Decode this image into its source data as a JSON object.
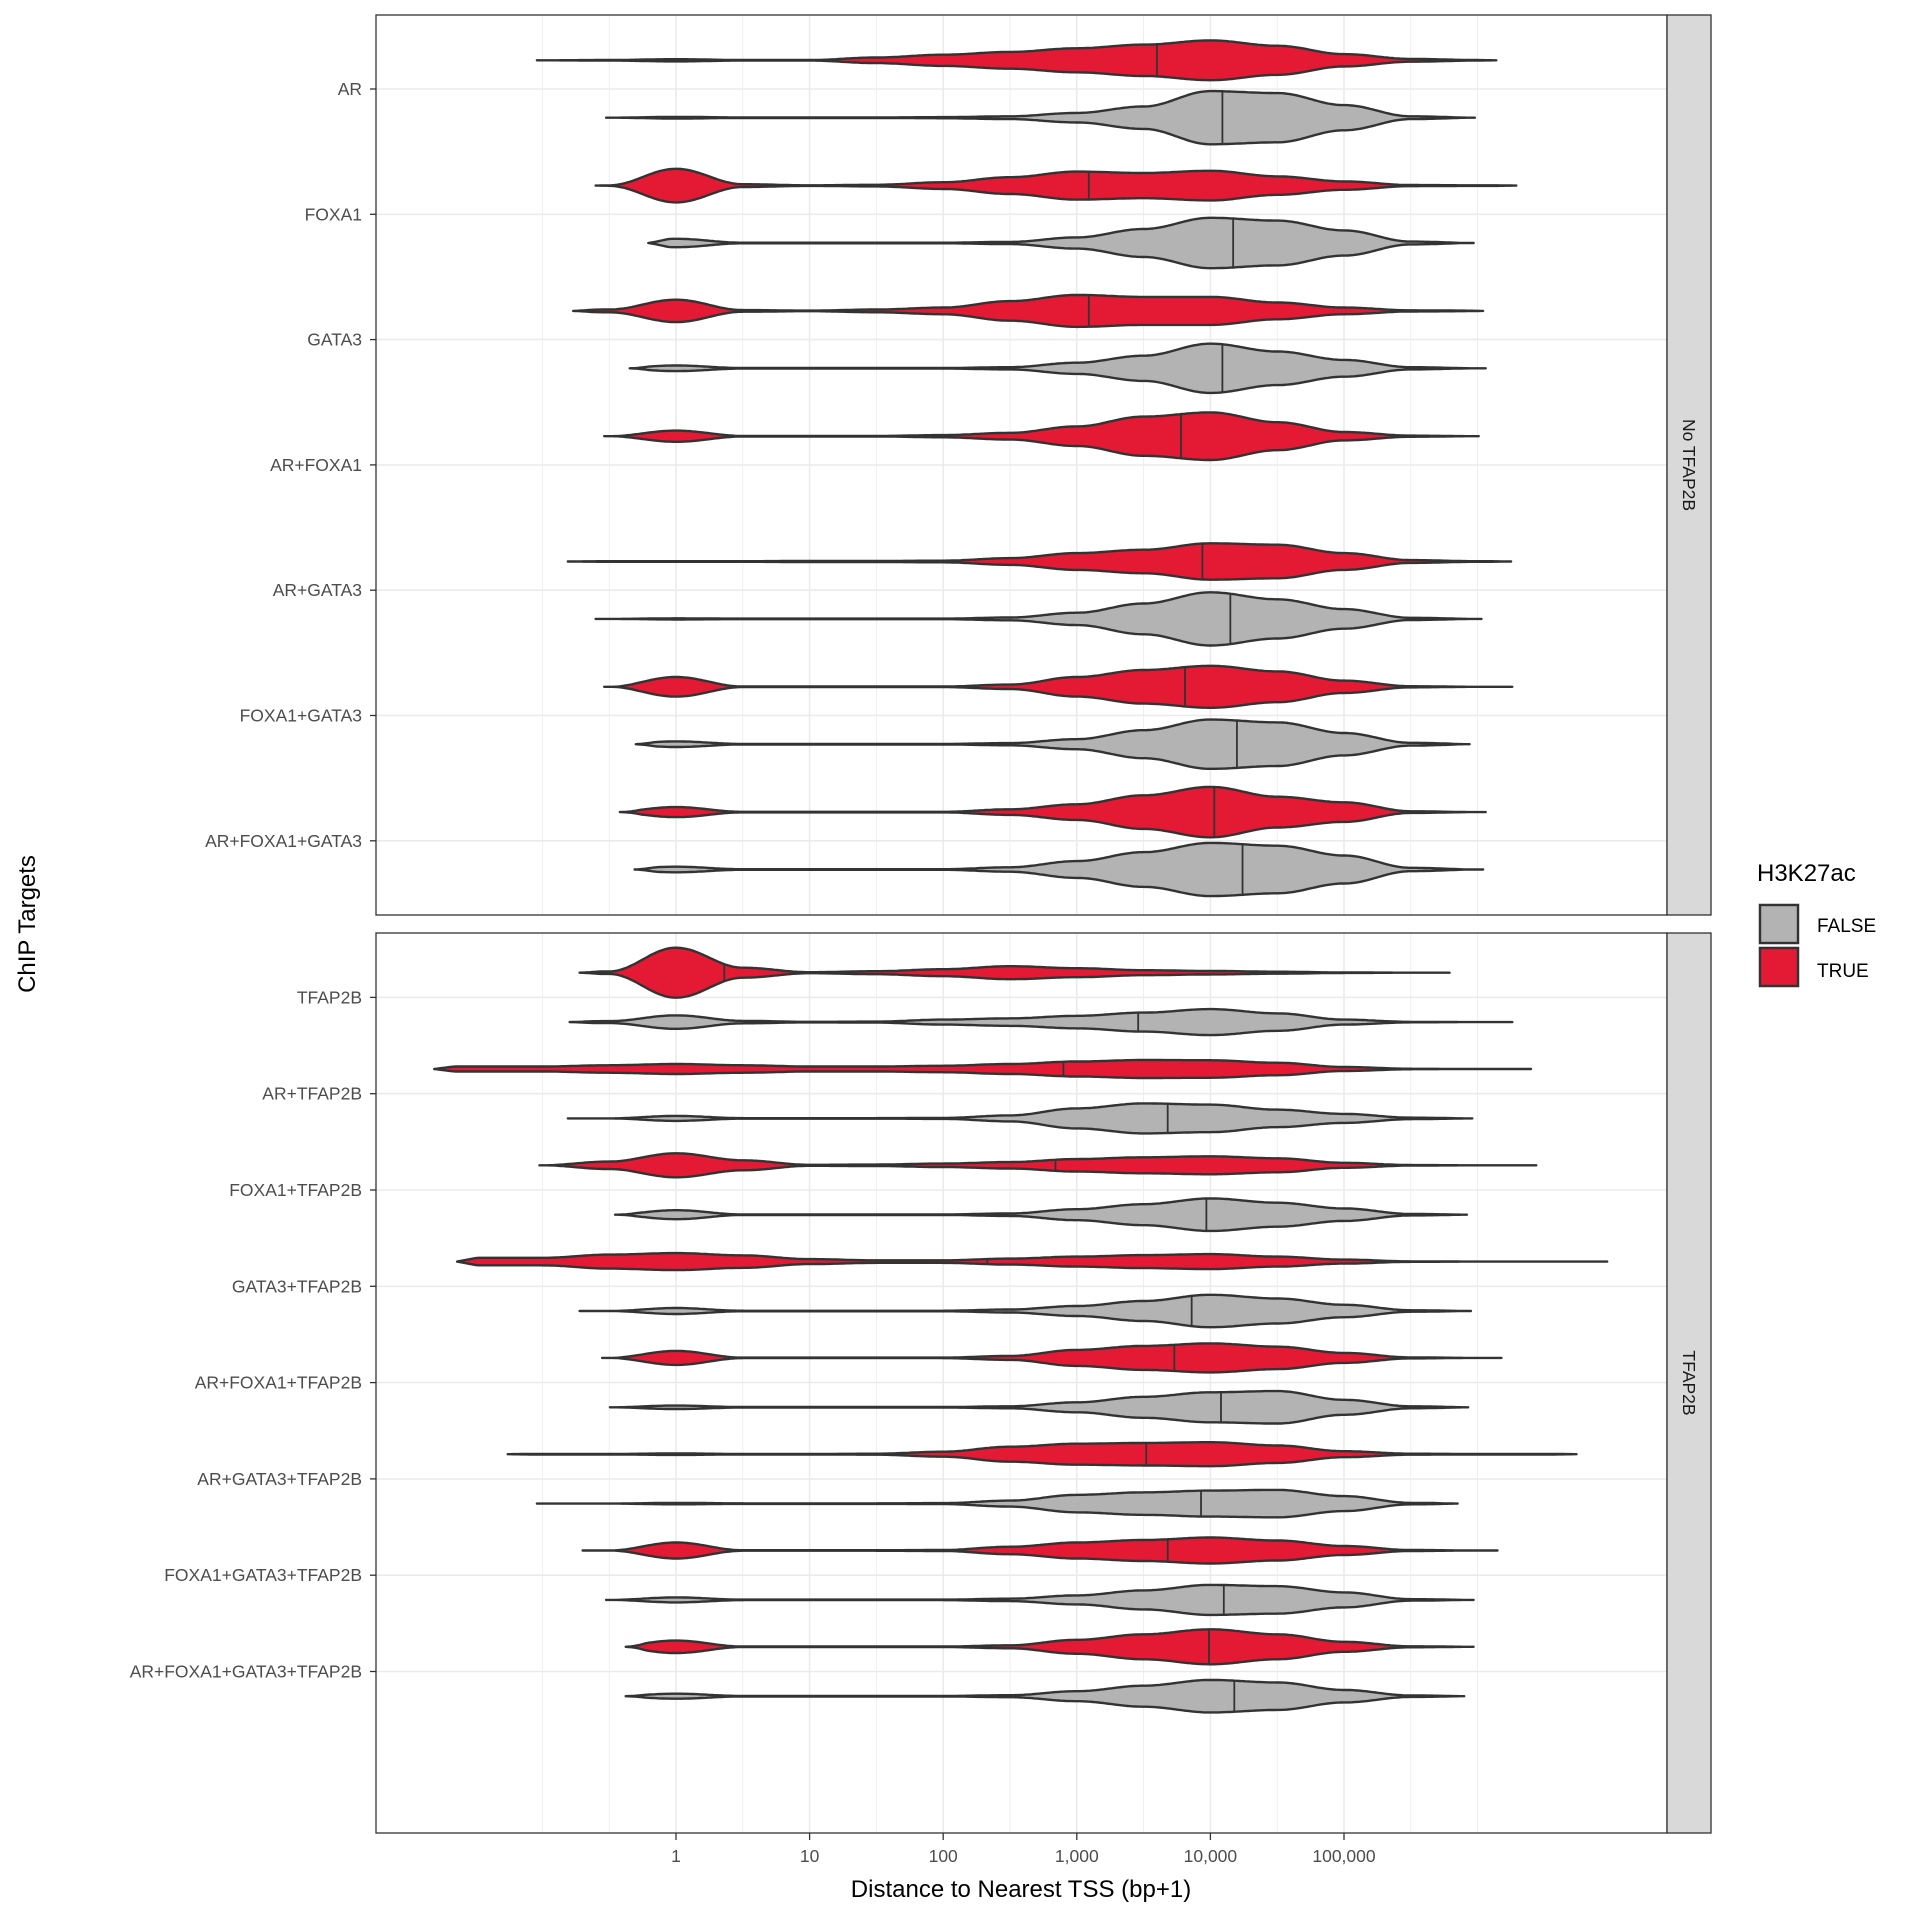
{
  "chart_data": {
    "type": "violin",
    "orientation": "horizontal",
    "xlabel": "Distance to Nearest TSS (bp+1)",
    "ylabel": "ChIP Targets",
    "x_scale": "log10",
    "x_ticks": [
      1,
      10,
      100,
      1000,
      10000,
      100000
    ],
    "x_tick_labels": [
      "1",
      "10",
      "100",
      "1,000",
      "10,000",
      "100,000"
    ],
    "xlim": [
      0.0057,
      26000000
    ],
    "grid": true,
    "legend": {
      "title": "H3K27ac",
      "placement": "right",
      "entries": [
        {
          "label": "FALSE",
          "color": "#b3b3b3"
        },
        {
          "label": "TRUE",
          "color": "#e41a35"
        }
      ]
    },
    "outline_color": "#333333",
    "density_at_bp": [
      0.1,
      0.316,
      1,
      3.16,
      10,
      31.6,
      100,
      316,
      1000,
      3162,
      10000,
      31623,
      100000,
      316228,
      1000000
    ],
    "facets": [
      {
        "label": "No TFAP2B",
        "categories": [
          {
            "name": "AR",
            "TRUE": {
              "min": 0.091,
              "max": 1380000,
              "median": 3980,
              "density": [
                0,
                0.01,
                0.04,
                0.01,
                0.01,
                0.1,
                0.2,
                0.3,
                0.43,
                0.56,
                0.71,
                0.52,
                0.22,
                0.05,
                0.01
              ]
            },
            "FALSE": {
              "min": 0.3,
              "max": 955000,
              "median": 12300,
              "density": [
                0,
                0,
                0.03,
                0.01,
                0.01,
                0.01,
                0.02,
                0.05,
                0.17,
                0.4,
                0.95,
                0.88,
                0.45,
                0.05,
                0
              ]
            }
          },
          {
            "name": "FOXA1",
            "TRUE": {
              "min": 0.25,
              "max": 1950000,
              "median": 1230,
              "density": [
                0,
                0.01,
                0.6,
                0.05,
                0.01,
                0.03,
                0.12,
                0.3,
                0.5,
                0.45,
                0.53,
                0.33,
                0.15,
                0.02,
                0.01
              ]
            },
            "FALSE": {
              "min": 0.62,
              "max": 933000,
              "median": 14800,
              "density": [
                0,
                0,
                0.15,
                0.01,
                0.01,
                0.01,
                0.01,
                0.04,
                0.2,
                0.5,
                0.9,
                0.8,
                0.45,
                0.05,
                0
              ]
            }
          },
          {
            "name": "GATA3",
            "TRUE": {
              "min": 0.17,
              "max": 1100000,
              "median": 1230,
              "density": [
                0,
                0.05,
                0.4,
                0.03,
                0.01,
                0.05,
                0.12,
                0.35,
                0.57,
                0.5,
                0.5,
                0.3,
                0.12,
                0.02,
                0.01
              ]
            },
            "FALSE": {
              "min": 0.45,
              "max": 1150000,
              "median": 12300,
              "density": [
                0,
                0,
                0.1,
                0.01,
                0.01,
                0.01,
                0.01,
                0.04,
                0.2,
                0.45,
                0.88,
                0.6,
                0.3,
                0.04,
                0
              ]
            }
          },
          {
            "name": "AR+FOXA1",
            "TRUE": {
              "min": 0.29,
              "max": 1020000,
              "median": 6030,
              "density": [
                0,
                0,
                0.2,
                0.01,
                0.01,
                0.01,
                0.04,
                0.12,
                0.35,
                0.7,
                0.85,
                0.5,
                0.15,
                0.02,
                0
              ]
            }
          },
          {
            "name": "AR+GATA3",
            "TRUE": {
              "min": 0.155,
              "max": 1780000,
              "median": 8710,
              "density": [
                0,
                0.01,
                0.01,
                0.01,
                0.02,
                0.02,
                0.03,
                0.12,
                0.3,
                0.42,
                0.65,
                0.6,
                0.3,
                0.05,
                0.01
              ]
            },
            "FALSE": {
              "min": 0.25,
              "max": 1070000,
              "median": 14100,
              "density": [
                0,
                0,
                0.02,
                0.01,
                0.01,
                0.01,
                0.01,
                0.05,
                0.22,
                0.55,
                0.95,
                0.7,
                0.35,
                0.04,
                0
              ]
            }
          },
          {
            "name": "FOXA1+GATA3",
            "TRUE": {
              "min": 0.29,
              "max": 1820000,
              "median": 6460,
              "density": [
                0,
                0,
                0.35,
                0.01,
                0.01,
                0.01,
                0.01,
                0.08,
                0.35,
                0.6,
                0.75,
                0.55,
                0.22,
                0.02,
                0
              ]
            },
            "FALSE": {
              "min": 0.5,
              "max": 871000,
              "median": 15800,
              "density": [
                0,
                0,
                0.1,
                0.01,
                0.01,
                0.01,
                0.01,
                0.04,
                0.18,
                0.5,
                0.88,
                0.78,
                0.4,
                0.05,
                0
              ]
            }
          },
          {
            "name": "AR+FOXA1+GATA3",
            "TRUE": {
              "min": 0.38,
              "max": 1150000,
              "median": 10700,
              "density": [
                0,
                0,
                0.18,
                0.01,
                0.01,
                0.01,
                0.01,
                0.1,
                0.28,
                0.6,
                0.9,
                0.55,
                0.35,
                0.03,
                0
              ]
            },
            "FALSE": {
              "min": 0.49,
              "max": 1100000,
              "median": 17400,
              "density": [
                0,
                0,
                0.1,
                0.01,
                0.01,
                0.01,
                0.01,
                0.08,
                0.3,
                0.62,
                0.95,
                0.85,
                0.5,
                0.06,
                0
              ]
            }
          }
        ]
      },
      {
        "label": "TFAP2B",
        "categories": [
          {
            "name": "TFAP2B",
            "TRUE": {
              "min": 0.19,
              "max": 617000,
              "median": 2.3,
              "density": [
                0,
                0.05,
                1.0,
                0.2,
                0.02,
                0.06,
                0.14,
                0.26,
                0.18,
                0.1,
                0.07,
                0.04,
                0.01,
                0,
                0
              ]
            },
            "FALSE": {
              "min": 0.16,
              "max": 1820000,
              "median": 2880,
              "density": [
                0,
                0.04,
                0.27,
                0.05,
                0.01,
                0.02,
                0.1,
                0.15,
                0.25,
                0.38,
                0.52,
                0.35,
                0.1,
                0.01,
                0
              ]
            }
          },
          {
            "name": "AR+TFAP2B",
            "TRUE": {
              "min": 0.0155,
              "max": 2510000,
              "median": 794,
              "density": [
                0.1,
                0.15,
                0.2,
                0.15,
                0.1,
                0.1,
                0.13,
                0.2,
                0.3,
                0.36,
                0.35,
                0.25,
                0.08,
                0.01,
                0
              ]
            },
            "FALSE": {
              "min": 0.155,
              "max": 912000,
              "median": 4790,
              "density": [
                0,
                0,
                0.1,
                0.01,
                0.01,
                0.01,
                0.02,
                0.12,
                0.4,
                0.6,
                0.55,
                0.35,
                0.18,
                0.03,
                0
              ]
            }
          },
          {
            "name": "FOXA1+TFAP2B",
            "TRUE": {
              "min": 0.095,
              "max": 2750000,
              "median": 692,
              "density": [
                0,
                0.15,
                0.48,
                0.2,
                0.02,
                0.03,
                0.07,
                0.13,
                0.25,
                0.32,
                0.36,
                0.28,
                0.1,
                0.01,
                0
              ]
            },
            "FALSE": {
              "min": 0.35,
              "max": 832000,
              "median": 9330,
              "density": [
                0,
                0,
                0.18,
                0.01,
                0.01,
                0.01,
                0.01,
                0.05,
                0.22,
                0.42,
                0.65,
                0.48,
                0.25,
                0.03,
                0
              ]
            }
          },
          {
            "name": "GATA3+TFAP2B",
            "TRUE": {
              "min": 0.023,
              "max": 9330000,
              "median": 214,
              "density": [
                0.15,
                0.28,
                0.34,
                0.25,
                0.1,
                0.05,
                0.05,
                0.12,
                0.2,
                0.26,
                0.3,
                0.2,
                0.08,
                0.01,
                0
              ]
            },
            "FALSE": {
              "min": 0.19,
              "max": 891000,
              "median": 7240,
              "density": [
                0,
                0,
                0.12,
                0.01,
                0.01,
                0.01,
                0.01,
                0.06,
                0.2,
                0.4,
                0.65,
                0.5,
                0.25,
                0.03,
                0
              ]
            }
          },
          {
            "name": "AR+FOXA1+TFAP2B",
            "TRUE": {
              "min": 0.28,
              "max": 1510000,
              "median": 5370,
              "density": [
                0,
                0,
                0.28,
                0.01,
                0.01,
                0.01,
                0.01,
                0.08,
                0.32,
                0.48,
                0.58,
                0.45,
                0.2,
                0.02,
                0
              ]
            },
            "FALSE": {
              "min": 0.32,
              "max": 851000,
              "median": 12000,
              "density": [
                0,
                0,
                0.07,
                0.01,
                0.01,
                0.01,
                0.01,
                0.04,
                0.2,
                0.42,
                0.6,
                0.65,
                0.3,
                0.04,
                0
              ]
            }
          },
          {
            "name": "AR+GATA3+TFAP2B",
            "TRUE": {
              "min": 0.055,
              "max": 5500000,
              "median": 3310,
              "density": [
                0.01,
                0.01,
                0.03,
                0.01,
                0.01,
                0.02,
                0.1,
                0.3,
                0.42,
                0.45,
                0.48,
                0.35,
                0.12,
                0.02,
                0.01
              ]
            },
            "FALSE": {
              "min": 0.091,
              "max": 708000,
              "median": 8510,
              "density": [
                0,
                0,
                0.03,
                0.01,
                0.01,
                0.01,
                0.02,
                0.12,
                0.35,
                0.45,
                0.52,
                0.55,
                0.3,
                0.03,
                0
              ]
            }
          },
          {
            "name": "FOXA1+GATA3+TFAP2B",
            "TRUE": {
              "min": 0.2,
              "max": 1410000,
              "median": 4790,
              "density": [
                0,
                0,
                0.32,
                0.01,
                0.01,
                0.01,
                0.02,
                0.15,
                0.32,
                0.42,
                0.52,
                0.4,
                0.18,
                0.02,
                0
              ]
            },
            "FALSE": {
              "min": 0.3,
              "max": 933000,
              "median": 12600,
              "density": [
                0,
                0,
                0.1,
                0.01,
                0.01,
                0.01,
                0.01,
                0.05,
                0.18,
                0.38,
                0.6,
                0.55,
                0.3,
                0.03,
                0
              ]
            }
          },
          {
            "name": "AR+FOXA1+GATA3+TFAP2B",
            "TRUE": {
              "min": 0.42,
              "max": 933000,
              "median": 9770,
              "density": [
                0,
                0,
                0.25,
                0.01,
                0.01,
                0.01,
                0.01,
                0.06,
                0.28,
                0.5,
                0.7,
                0.5,
                0.2,
                0.02,
                0
              ]
            },
            "FALSE": {
              "min": 0.42,
              "max": 794000,
              "median": 15100,
              "density": [
                0,
                0,
                0.1,
                0.01,
                0.01,
                0.01,
                0.01,
                0.04,
                0.2,
                0.42,
                0.65,
                0.55,
                0.25,
                0.03,
                0
              ]
            }
          }
        ]
      }
    ]
  }
}
